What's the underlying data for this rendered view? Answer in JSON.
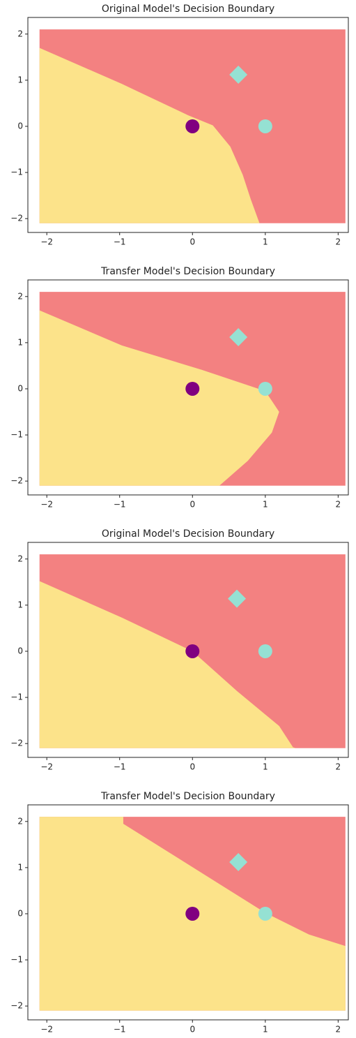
{
  "chart_data": [
    {
      "type": "scatter",
      "title": "Original Model's Decision Boundary",
      "xlim": [
        -2.26,
        2.14
      ],
      "ylim": [
        -2.3,
        2.36
      ],
      "xticks": [
        {
          "value": -2,
          "label": "−2"
        },
        {
          "value": -1,
          "label": "−1"
        },
        0,
        1,
        2
      ],
      "yticks": [
        {
          "value": -2,
          "label": "−2"
        },
        {
          "value": -1,
          "label": "−1"
        },
        0,
        1,
        2
      ],
      "regions": [
        {
          "color": "#f38181",
          "x": [
            -2.1,
            2.1,
            2.1,
            -2.1
          ],
          "y": [
            -2.1,
            -2.1,
            2.1,
            2.1
          ]
        },
        {
          "color": "#fce38a",
          "x": [
            -2.1,
            -2.1,
            -0.97,
            -0.06,
            0.28,
            0.52,
            0.69,
            0.8,
            0.92
          ],
          "y": [
            -2.1,
            1.7,
            0.92,
            0.24,
            0.02,
            -0.44,
            -1.05,
            -1.58,
            -2.1
          ]
        }
      ],
      "series": [
        {
          "color": "#800080",
          "marker": "circle",
          "x": [
            0
          ],
          "y": [
            0
          ]
        },
        {
          "color": "#95e1d3",
          "marker": "circle",
          "x": [
            1
          ],
          "y": [
            0
          ]
        },
        {
          "color": "#95e1d3",
          "marker": "diamond",
          "x": [
            0.63
          ],
          "y": [
            1.12
          ]
        }
      ]
    },
    {
      "type": "scatter",
      "title": "Transfer Model's Decision Boundary",
      "xlim": [
        -2.26,
        2.14
      ],
      "ylim": [
        -2.3,
        2.36
      ],
      "xticks": [
        {
          "value": -2,
          "label": "−2"
        },
        {
          "value": -1,
          "label": "−1"
        },
        0,
        1,
        2
      ],
      "yticks": [
        {
          "value": -2,
          "label": "−2"
        },
        {
          "value": -1,
          "label": "−1"
        },
        0,
        1,
        2
      ],
      "regions": [
        {
          "color": "#f38181",
          "x": [
            -2.1,
            2.1,
            2.1,
            -2.1
          ],
          "y": [
            -2.1,
            -2.1,
            2.1,
            2.1
          ]
        },
        {
          "color": "#fce38a",
          "x": [
            -2.1,
            -2.1,
            -0.97,
            0.13,
            1.0,
            1.19,
            1.09,
            0.76,
            0.37
          ],
          "y": [
            -2.1,
            1.7,
            0.94,
            0.41,
            -0.05,
            -0.5,
            -0.95,
            -1.56,
            -2.1
          ]
        }
      ],
      "series": [
        {
          "color": "#800080",
          "marker": "circle",
          "x": [
            0
          ],
          "y": [
            0
          ]
        },
        {
          "color": "#95e1d3",
          "marker": "circle",
          "x": [
            1
          ],
          "y": [
            0
          ]
        },
        {
          "color": "#95e1d3",
          "marker": "diamond",
          "x": [
            0.63
          ],
          "y": [
            1.12
          ]
        }
      ]
    },
    {
      "type": "scatter",
      "title": "Original Model's Decision Boundary",
      "xlim": [
        -2.26,
        2.14
      ],
      "ylim": [
        -2.3,
        2.36
      ],
      "xticks": [
        {
          "value": -2,
          "label": "−2"
        },
        {
          "value": -1,
          "label": "−1"
        },
        0,
        1,
        2
      ],
      "yticks": [
        {
          "value": -2,
          "label": "−2"
        },
        {
          "value": -1,
          "label": "−1"
        },
        0,
        1,
        2
      ],
      "regions": [
        {
          "color": "#f38181",
          "x": [
            -2.1,
            2.1,
            2.1,
            -2.1
          ],
          "y": [
            -2.1,
            -2.1,
            2.1,
            2.1
          ]
        },
        {
          "color": "#fce38a",
          "x": [
            -2.1,
            -2.1,
            -0.97,
            0,
            0.61,
            1.19,
            1.38,
            1.42
          ],
          "y": [
            -2.1,
            1.52,
            0.73,
            0,
            -0.86,
            -1.62,
            -2.08,
            -2.1
          ]
        }
      ],
      "series": [
        {
          "color": "#800080",
          "marker": "circle",
          "x": [
            0
          ],
          "y": [
            0
          ]
        },
        {
          "color": "#95e1d3",
          "marker": "circle",
          "x": [
            1
          ],
          "y": [
            0
          ]
        },
        {
          "color": "#95e1d3",
          "marker": "diamond",
          "x": [
            0.61
          ],
          "y": [
            1.14
          ]
        }
      ]
    },
    {
      "type": "scatter",
      "title": "Transfer Model's Decision Boundary",
      "xlim": [
        -2.26,
        2.14
      ],
      "ylim": [
        -2.3,
        2.36
      ],
      "xticks": [
        {
          "value": -2,
          "label": "−2"
        },
        {
          "value": -1,
          "label": "−1"
        },
        0,
        1,
        2
      ],
      "yticks": [
        {
          "value": -2,
          "label": "−2"
        },
        {
          "value": -1,
          "label": "−1"
        },
        0,
        1,
        2
      ],
      "regions": [
        {
          "color": "#f38181",
          "x": [
            -2.1,
            2.1,
            2.1,
            -2.1
          ],
          "y": [
            -2.1,
            -2.1,
            2.1,
            2.1
          ]
        },
        {
          "color": "#fce38a",
          "x": [
            -2.1,
            -2.1,
            -0.95,
            -0.95,
            1.0,
            1.6,
            2.1,
            2.1
          ],
          "y": [
            -2.1,
            2.1,
            2.1,
            1.95,
            0.02,
            -0.45,
            -0.7,
            -2.1
          ]
        }
      ],
      "series": [
        {
          "color": "#800080",
          "marker": "circle",
          "x": [
            0
          ],
          "y": [
            0
          ]
        },
        {
          "color": "#95e1d3",
          "marker": "circle",
          "x": [
            1
          ],
          "y": [
            0
          ]
        },
        {
          "color": "#95e1d3",
          "marker": "diamond",
          "x": [
            0.63
          ],
          "y": [
            1.12
          ]
        }
      ]
    }
  ]
}
